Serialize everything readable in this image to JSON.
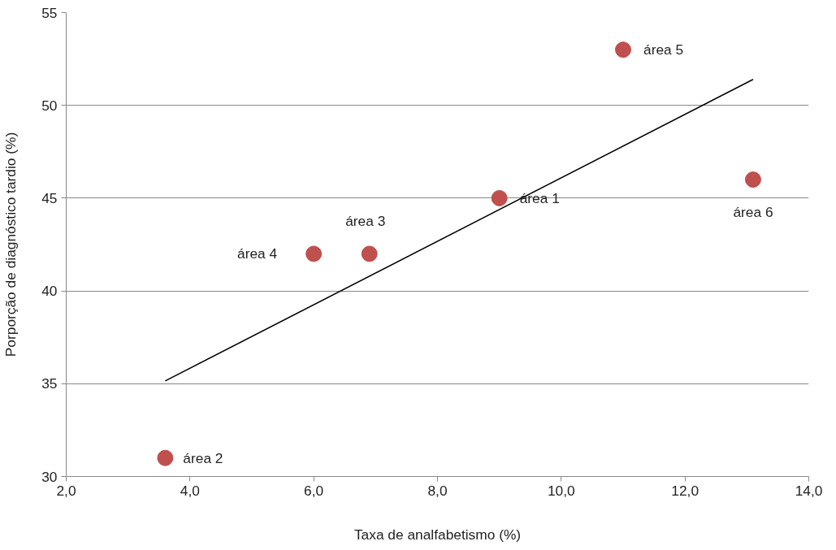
{
  "chart_data": {
    "type": "scatter",
    "xlabel": "Taxa de analfabetismo (%)",
    "ylabel": "Porporção de diagnóstico tardio (%)",
    "xlim": [
      2,
      14
    ],
    "ylim": [
      30,
      55
    ],
    "xticks": [
      {
        "value": 2,
        "label": "2,0"
      },
      {
        "value": 4,
        "label": "4,0"
      },
      {
        "value": 6,
        "label": "6,0"
      },
      {
        "value": 8,
        "label": "8,0"
      },
      {
        "value": 10,
        "label": "10,0"
      },
      {
        "value": 12,
        "label": "12,0"
      },
      {
        "value": 14,
        "label": "14,0"
      }
    ],
    "yticks": [
      30,
      35,
      40,
      45,
      50,
      55
    ],
    "grid": "y",
    "series": [
      {
        "marker": "circle",
        "color": "#c0504d",
        "x": [
          9.0,
          3.6,
          6.9,
          6.0,
          11.0,
          13.1
        ],
        "values": [
          45,
          31,
          42,
          42,
          53,
          46
        ]
      },
      {
        "type": "line",
        "color": "#000000",
        "x": [
          3.6,
          13.1
        ],
        "values": [
          35.15,
          51.4
        ]
      }
    ],
    "annotations": [
      {
        "text": "área 1",
        "x": 9.0,
        "y": 45
      },
      {
        "text": "área 2",
        "x": 3.6,
        "y": 31
      },
      {
        "text": "área 3",
        "x": 6.9,
        "y": 42
      },
      {
        "text": "área 4",
        "x": 6.0,
        "y": 42
      },
      {
        "text": "área 5",
        "x": 11.0,
        "y": 53
      },
      {
        "text": "área 6",
        "x": 13.1,
        "y": 46
      }
    ]
  }
}
